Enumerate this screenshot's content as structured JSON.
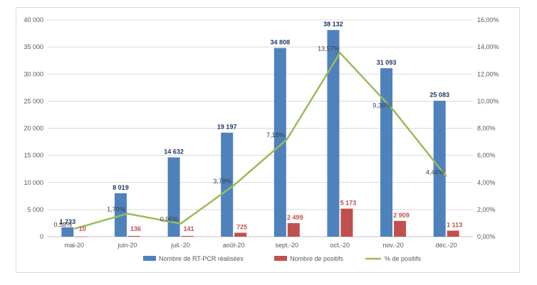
{
  "chart_data": {
    "type": "bar",
    "categories": [
      "mai-20",
      "juin-20",
      "juil.-20",
      "août-20",
      "sept.-20",
      "oct.-20",
      "nov.-20",
      "déc.-20"
    ],
    "series": [
      {
        "name": "Nombre de RT-PCR réalisées",
        "type": "bar",
        "axis": "left",
        "color": "#4f81bd",
        "values": [
          1733,
          8019,
          14632,
          19197,
          34808,
          38132,
          31093,
          25083
        ],
        "labels": [
          "1 733",
          "8 019",
          "14 632",
          "19 197",
          "34 808",
          "38 132",
          "31 093",
          "25 083"
        ]
      },
      {
        "name": "Nombre de positifs",
        "type": "bar",
        "axis": "left",
        "color": "#c0504d",
        "values": [
          10,
          136,
          141,
          725,
          2499,
          5173,
          2909,
          1113
        ],
        "labels": [
          "10",
          "136",
          "141",
          "725",
          "2 499",
          "5 173",
          "2 909",
          "1 113"
        ]
      },
      {
        "name": "% de positifs",
        "type": "line",
        "axis": "right",
        "color": "#9bbb59",
        "values": [
          0.58,
          1.7,
          0.96,
          3.78,
          7.18,
          13.57,
          9.36,
          4.44
        ],
        "labels": [
          "0,58%",
          "1,70%",
          "0,96%",
          "3,78%",
          "7,18%",
          "13,57%",
          "9,36%",
          "4,44%"
        ]
      }
    ],
    "ylim": [
      0,
      40000
    ],
    "y2lim": [
      0,
      16
    ],
    "y_ticks": [
      0,
      5000,
      10000,
      15000,
      20000,
      25000,
      30000,
      35000,
      40000
    ],
    "y_tick_labels": [
      "0",
      "5 000",
      "10 000",
      "15 000",
      "20 000",
      "25 000",
      "30 000",
      "35 000",
      "40 000"
    ],
    "y2_ticks": [
      0,
      2,
      4,
      6,
      8,
      10,
      12,
      14,
      16
    ],
    "y2_tick_labels": [
      "0,00%",
      "2,00%",
      "4,00%",
      "6,00%",
      "8,00%",
      "10,00%",
      "12,00%",
      "14,00%",
      "16,00%"
    ],
    "grid": true,
    "legend_position": "bottom",
    "gridline_color": "#d9d9d9"
  }
}
